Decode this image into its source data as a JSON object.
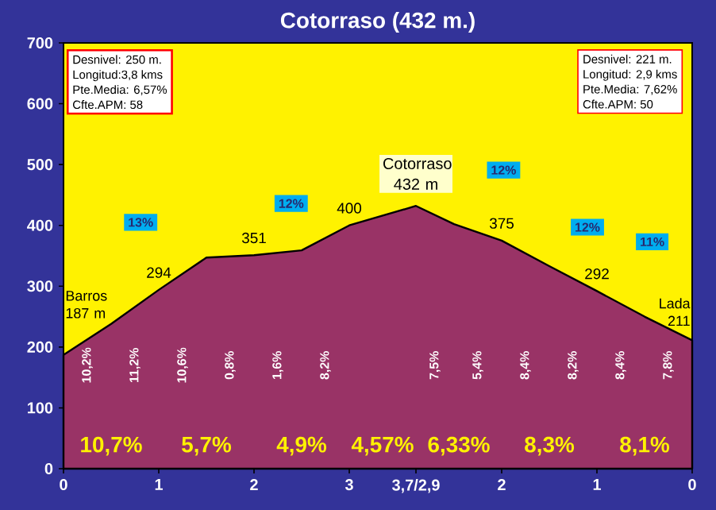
{
  "chart_data": {
    "type": "area",
    "title": "Cotorraso (432 m.)",
    "x": [
      0,
      0.5,
      1,
      1.5,
      2,
      2.5,
      3,
      3.7,
      4.1,
      4.6,
      5.1,
      5.6,
      6.1,
      6.6
    ],
    "series": [
      {
        "color": "#993366",
        "values": [
          187,
          238,
          294,
          347,
          351,
          359,
          400,
          432,
          402,
          375,
          333,
          292,
          250,
          211
        ]
      }
    ],
    "xlim": [
      0,
      6.6
    ],
    "ylim": [
      0,
      700
    ],
    "xticks": [
      0,
      1,
      2,
      3,
      {
        "value": 3.7,
        "label": "3,7/2,9"
      }
    ],
    "x2lim": [
      6.6,
      0
    ],
    "x2ticks": [
      2,
      1,
      0
    ],
    "yticks": [
      0,
      100,
      200,
      300,
      400,
      500,
      600,
      700
    ],
    "annotations": [
      "Desnivel: 250 m.",
      "Longitud:3,8 kms",
      "Pte.Media: 6,57%",
      "Cfte.APM: 58",
      "Desnivel: 221 m.",
      "Longitud: 2,9 kms",
      "Pte.Media: 7,62%",
      "Cfte.APM: 50",
      "10,2%",
      "11,2%",
      "10,6%",
      "0,8%",
      "1,6%",
      "8,2%",
      "7,5%",
      "5,4%",
      "8,4%",
      "8,2%",
      "8,4%",
      "7,8%",
      "10,7%",
      "5,7%",
      "4,9%",
      "4,57%",
      "6,33%",
      "8,3%",
      "8,1%",
      {
        "text": "Barros 187 m",
        "x": 0,
        "y": 187
      },
      {
        "text": "Lada 211",
        "x": 6.6,
        "y": 211
      },
      {
        "text": "Cotorraso 432 m",
        "x": 3.7,
        "y": 432
      },
      {
        "text": "294",
        "x": 1,
        "y": 294
      },
      {
        "text": "351",
        "x": 2,
        "y": 351
      },
      {
        "text": "400",
        "x": 3,
        "y": 400
      },
      {
        "text": "375",
        "x": 4.6,
        "y": 375
      },
      {
        "text": "292",
        "x": 5.6,
        "y": 292
      },
      {
        "text": "13%",
        "x": 0.81,
        "y": 405
      },
      {
        "text": "12%",
        "x": 2.39,
        "y": 436
      },
      {
        "text": "12%",
        "x": 4.62,
        "y": 491
      },
      {
        "text": "12%",
        "x": 5.5,
        "y": 397
      },
      {
        "text": "11%",
        "x": 6.18,
        "y": 373
      }
    ]
  }
}
